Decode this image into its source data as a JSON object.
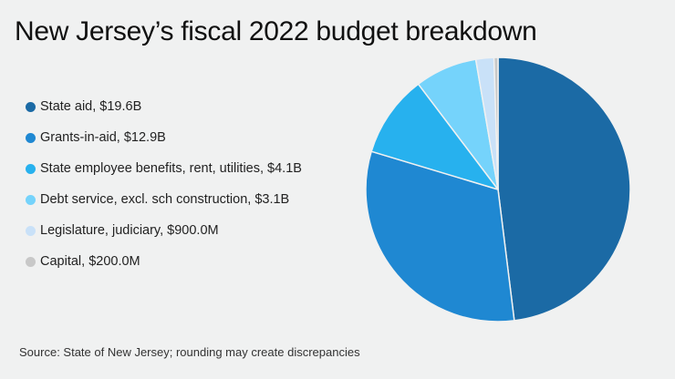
{
  "chart_data": {
    "type": "pie",
    "title": "New Jersey’s fiscal 2022 budget breakdown",
    "source": "Source: State of New Jersey; rounding may create discrepancies",
    "unit": "USD",
    "start_angle": "top (12 o'clock), clockwise",
    "legend_position": "left",
    "slices": [
      {
        "name": "State aid",
        "label": "State aid, $19.6B",
        "value": 19.6,
        "color": "#1b6aa5"
      },
      {
        "name": "Grants-in-aid",
        "label": "Grants-in-aid, $12.9B",
        "value": 12.9,
        "color": "#1f88d2"
      },
      {
        "name": "State employee benefits, rent, utilities",
        "label": "State employee benefits, rent, utilities, $4.1B",
        "value": 4.1,
        "color": "#27b1ee"
      },
      {
        "name": "Debt service, excl. sch construction",
        "label": "Debt service, excl. sch construction, $3.1B",
        "value": 3.1,
        "color": "#75d3fb"
      },
      {
        "name": "Legislature, judiciary",
        "label": "Legislature, judiciary, $900.0M",
        "value": 0.9,
        "color": "#c9e1f8"
      },
      {
        "name": "Capital",
        "label": "Capital, $200.0M",
        "value": 0.2,
        "color": "#c8c8c8"
      }
    ]
  }
}
